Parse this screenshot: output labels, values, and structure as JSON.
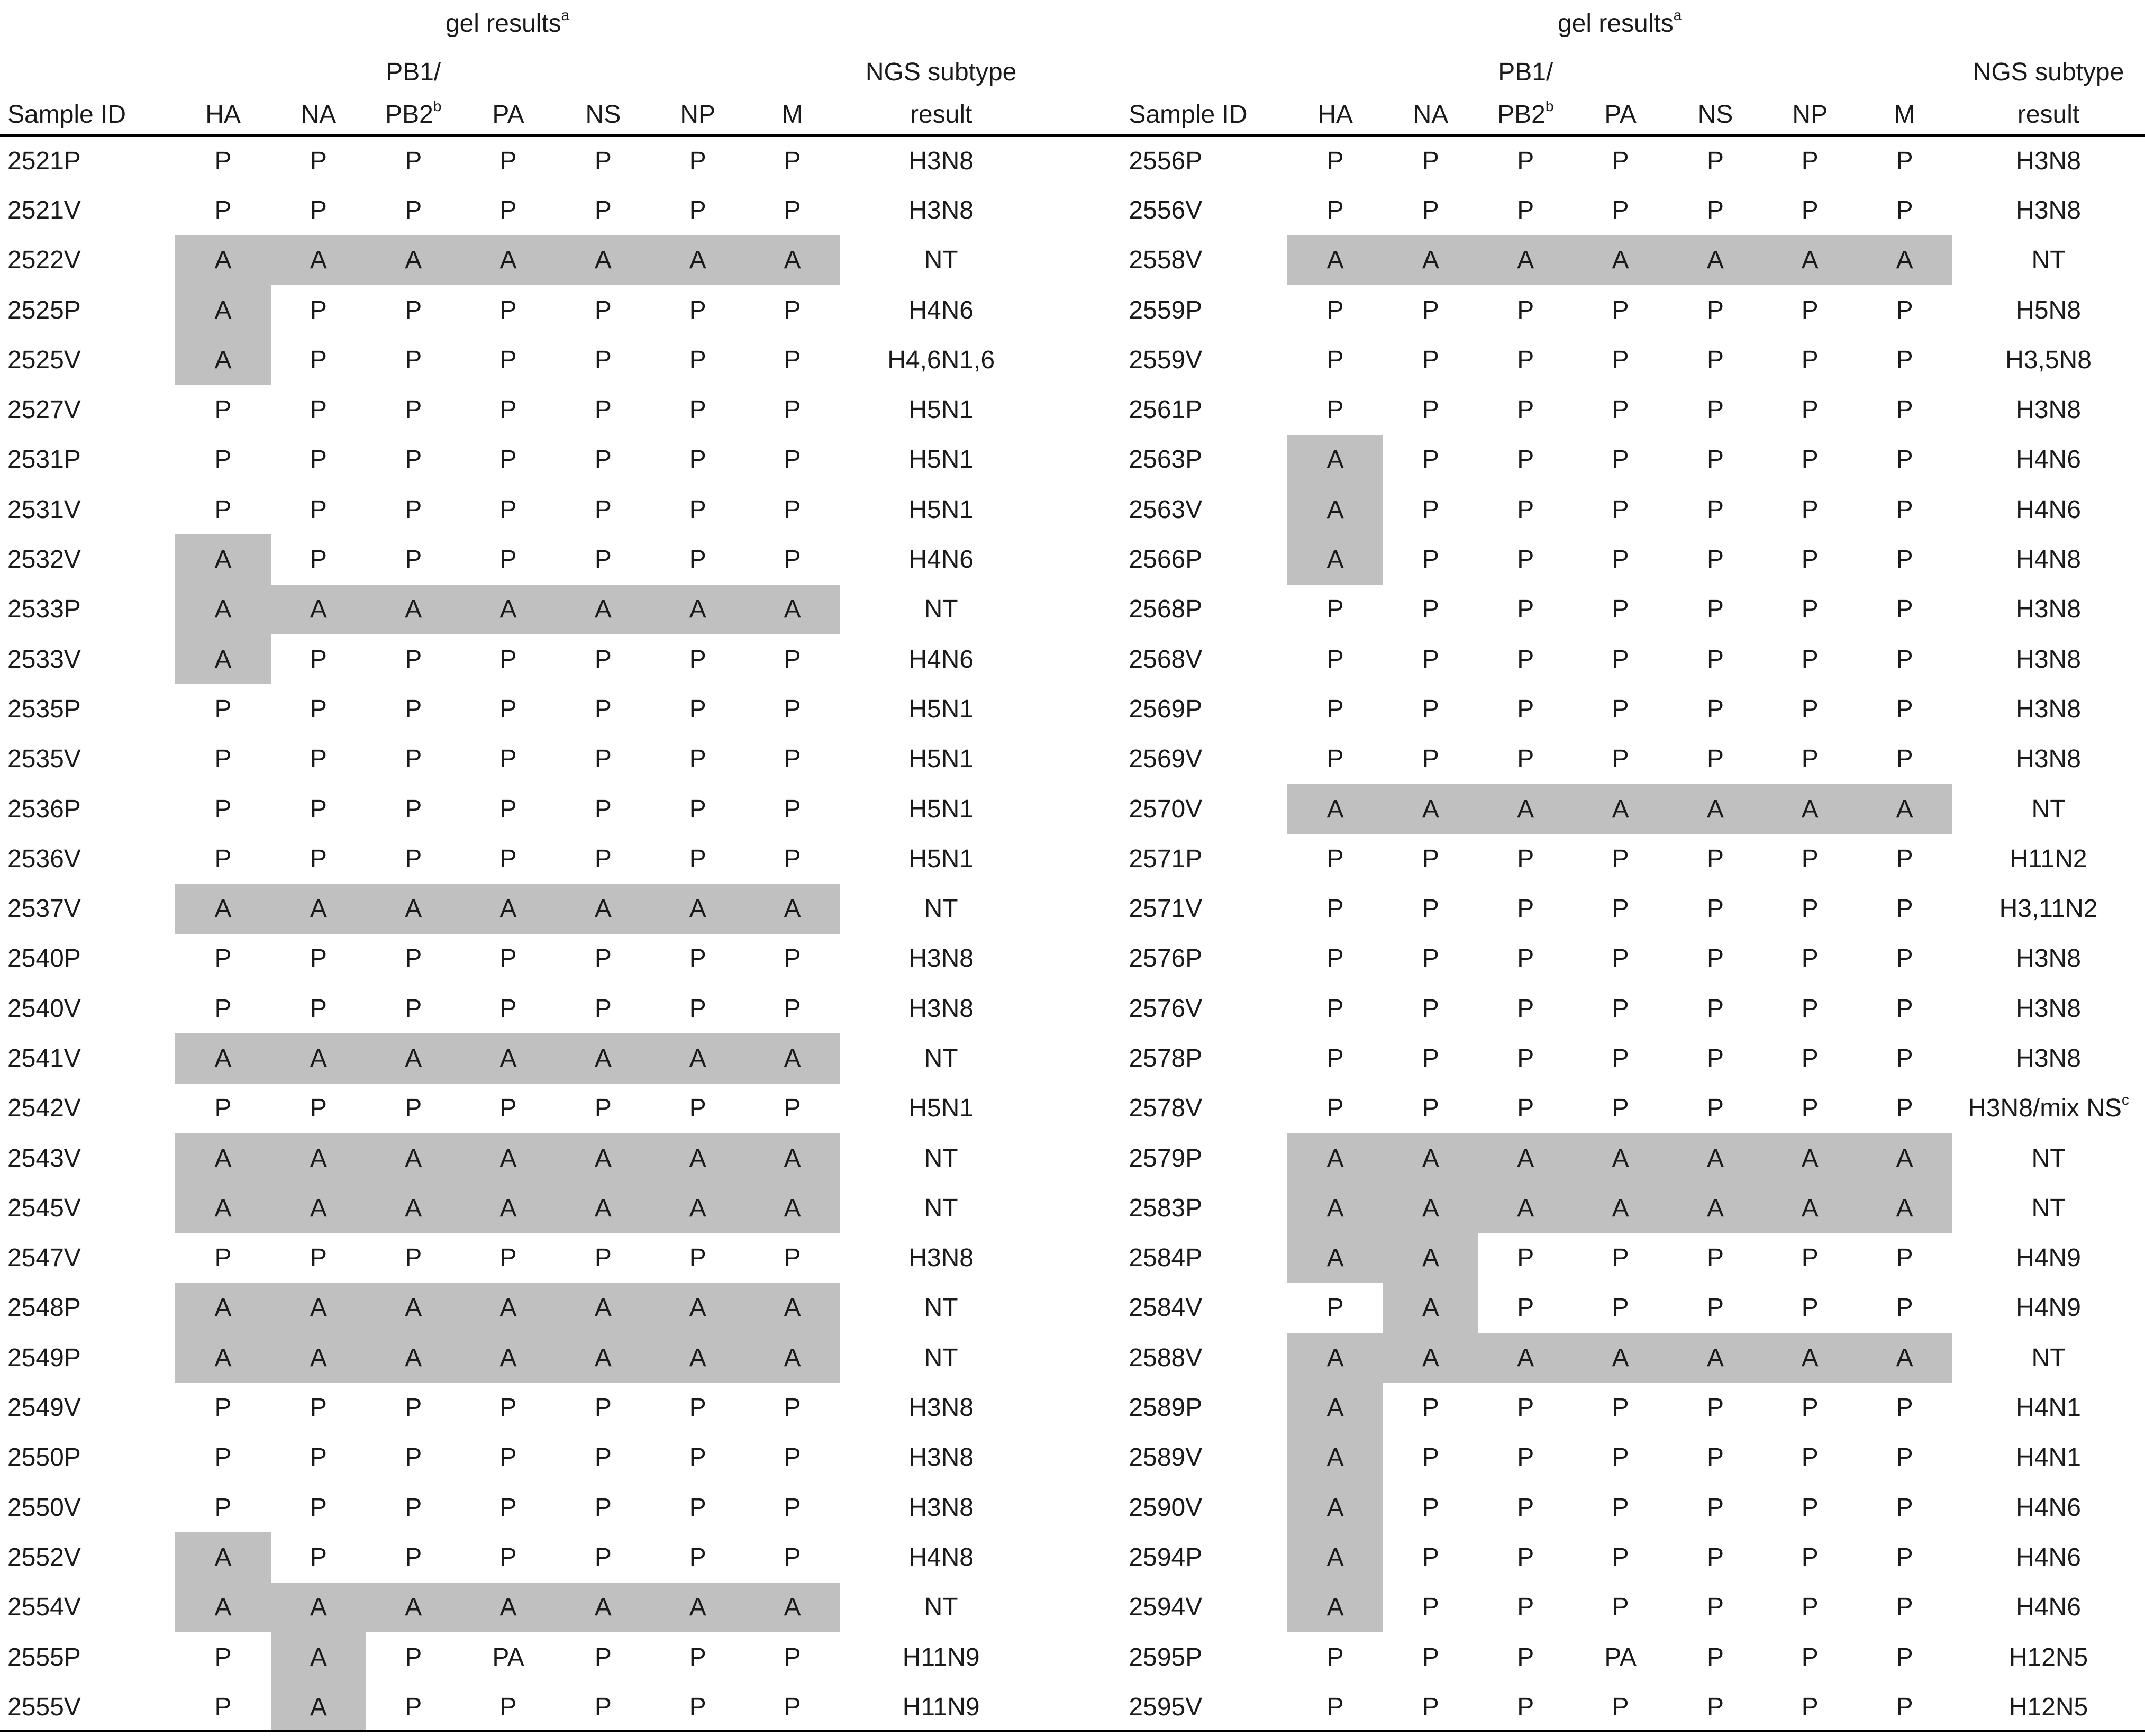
{
  "header": {
    "gel_results": "gel results",
    "gel_results_sup": "a",
    "sample_id": "Sample ID",
    "pb_top": "PB1/",
    "pb_bottom": "PB2",
    "pb_sup": "b",
    "ngs_line1": "NGS subtype",
    "ngs_line2": "result",
    "genes": [
      "HA",
      "NA",
      "PA",
      "NS",
      "NP",
      "M"
    ]
  },
  "left": [
    {
      "id": "2521P",
      "gel": [
        "P",
        "P",
        "P",
        "P",
        "P",
        "P",
        "P"
      ],
      "ngs": "H3N8"
    },
    {
      "id": "2521V",
      "gel": [
        "P",
        "P",
        "P",
        "P",
        "P",
        "P",
        "P"
      ],
      "ngs": "H3N8"
    },
    {
      "id": "2522V",
      "gel": [
        "A",
        "A",
        "A",
        "A",
        "A",
        "A",
        "A"
      ],
      "ngs": "NT"
    },
    {
      "id": "2525P",
      "gel": [
        "A",
        "P",
        "P",
        "P",
        "P",
        "P",
        "P"
      ],
      "ngs": "H4N6"
    },
    {
      "id": "2525V",
      "gel": [
        "A",
        "P",
        "P",
        "P",
        "P",
        "P",
        "P"
      ],
      "ngs": "H4,6N1,6"
    },
    {
      "id": "2527V",
      "gel": [
        "P",
        "P",
        "P",
        "P",
        "P",
        "P",
        "P"
      ],
      "ngs": "H5N1"
    },
    {
      "id": "2531P",
      "gel": [
        "P",
        "P",
        "P",
        "P",
        "P",
        "P",
        "P"
      ],
      "ngs": "H5N1"
    },
    {
      "id": "2531V",
      "gel": [
        "P",
        "P",
        "P",
        "P",
        "P",
        "P",
        "P"
      ],
      "ngs": "H5N1"
    },
    {
      "id": "2532V",
      "gel": [
        "A",
        "P",
        "P",
        "P",
        "P",
        "P",
        "P"
      ],
      "ngs": "H4N6"
    },
    {
      "id": "2533P",
      "gel": [
        "A",
        "A",
        "A",
        "A",
        "A",
        "A",
        "A"
      ],
      "ngs": "NT"
    },
    {
      "id": "2533V",
      "gel": [
        "A",
        "P",
        "P",
        "P",
        "P",
        "P",
        "P"
      ],
      "ngs": "H4N6"
    },
    {
      "id": "2535P",
      "gel": [
        "P",
        "P",
        "P",
        "P",
        "P",
        "P",
        "P"
      ],
      "ngs": "H5N1"
    },
    {
      "id": "2535V",
      "gel": [
        "P",
        "P",
        "P",
        "P",
        "P",
        "P",
        "P"
      ],
      "ngs": "H5N1"
    },
    {
      "id": "2536P",
      "gel": [
        "P",
        "P",
        "P",
        "P",
        "P",
        "P",
        "P"
      ],
      "ngs": "H5N1"
    },
    {
      "id": "2536V",
      "gel": [
        "P",
        "P",
        "P",
        "P",
        "P",
        "P",
        "P"
      ],
      "ngs": "H5N1"
    },
    {
      "id": "2537V",
      "gel": [
        "A",
        "A",
        "A",
        "A",
        "A",
        "A",
        "A"
      ],
      "ngs": "NT"
    },
    {
      "id": "2540P",
      "gel": [
        "P",
        "P",
        "P",
        "P",
        "P",
        "P",
        "P"
      ],
      "ngs": "H3N8"
    },
    {
      "id": "2540V",
      "gel": [
        "P",
        "P",
        "P",
        "P",
        "P",
        "P",
        "P"
      ],
      "ngs": "H3N8"
    },
    {
      "id": "2541V",
      "gel": [
        "A",
        "A",
        "A",
        "A",
        "A",
        "A",
        "A"
      ],
      "ngs": "NT"
    },
    {
      "id": "2542V",
      "gel": [
        "P",
        "P",
        "P",
        "P",
        "P",
        "P",
        "P"
      ],
      "ngs": "H5N1"
    },
    {
      "id": "2543V",
      "gel": [
        "A",
        "A",
        "A",
        "A",
        "A",
        "A",
        "A"
      ],
      "ngs": "NT"
    },
    {
      "id": "2545V",
      "gel": [
        "A",
        "A",
        "A",
        "A",
        "A",
        "A",
        "A"
      ],
      "ngs": "NT"
    },
    {
      "id": "2547V",
      "gel": [
        "P",
        "P",
        "P",
        "P",
        "P",
        "P",
        "P"
      ],
      "ngs": "H3N8"
    },
    {
      "id": "2548P",
      "gel": [
        "A",
        "A",
        "A",
        "A",
        "A",
        "A",
        "A"
      ],
      "ngs": "NT"
    },
    {
      "id": "2549P",
      "gel": [
        "A",
        "A",
        "A",
        "A",
        "A",
        "A",
        "A"
      ],
      "ngs": "NT"
    },
    {
      "id": "2549V",
      "gel": [
        "P",
        "P",
        "P",
        "P",
        "P",
        "P",
        "P"
      ],
      "ngs": "H3N8"
    },
    {
      "id": "2550P",
      "gel": [
        "P",
        "P",
        "P",
        "P",
        "P",
        "P",
        "P"
      ],
      "ngs": "H3N8"
    },
    {
      "id": "2550V",
      "gel": [
        "P",
        "P",
        "P",
        "P",
        "P",
        "P",
        "P"
      ],
      "ngs": "H3N8"
    },
    {
      "id": "2552V",
      "gel": [
        "A",
        "P",
        "P",
        "P",
        "P",
        "P",
        "P"
      ],
      "ngs": "H4N8"
    },
    {
      "id": "2554V",
      "gel": [
        "A",
        "A",
        "A",
        "A",
        "A",
        "A",
        "A"
      ],
      "ngs": "NT"
    },
    {
      "id": "2555P",
      "gel": [
        "P",
        "A",
        "P",
        "PA",
        "P",
        "P",
        "P"
      ],
      "ngs": "H11N9"
    },
    {
      "id": "2555V",
      "gel": [
        "P",
        "A",
        "P",
        "P",
        "P",
        "P",
        "P"
      ],
      "ngs": "H11N9"
    }
  ],
  "right": [
    {
      "id": "2556P",
      "gel": [
        "P",
        "P",
        "P",
        "P",
        "P",
        "P",
        "P"
      ],
      "ngs": "H3N8"
    },
    {
      "id": "2556V",
      "gel": [
        "P",
        "P",
        "P",
        "P",
        "P",
        "P",
        "P"
      ],
      "ngs": "H3N8"
    },
    {
      "id": "2558V",
      "gel": [
        "A",
        "A",
        "A",
        "A",
        "A",
        "A",
        "A"
      ],
      "ngs": "NT"
    },
    {
      "id": "2559P",
      "gel": [
        "P",
        "P",
        "P",
        "P",
        "P",
        "P",
        "P"
      ],
      "ngs": "H5N8"
    },
    {
      "id": "2559V",
      "gel": [
        "P",
        "P",
        "P",
        "P",
        "P",
        "P",
        "P"
      ],
      "ngs": "H3,5N8"
    },
    {
      "id": "2561P",
      "gel": [
        "P",
        "P",
        "P",
        "P",
        "P",
        "P",
        "P"
      ],
      "ngs": "H3N8"
    },
    {
      "id": "2563P",
      "gel": [
        "A",
        "P",
        "P",
        "P",
        "P",
        "P",
        "P"
      ],
      "ngs": "H4N6"
    },
    {
      "id": "2563V",
      "gel": [
        "A",
        "P",
        "P",
        "P",
        "P",
        "P",
        "P"
      ],
      "ngs": "H4N6"
    },
    {
      "id": "2566P",
      "gel": [
        "A",
        "P",
        "P",
        "P",
        "P",
        "P",
        "P"
      ],
      "ngs": "H4N8"
    },
    {
      "id": "2568P",
      "gel": [
        "P",
        "P",
        "P",
        "P",
        "P",
        "P",
        "P"
      ],
      "ngs": "H3N8"
    },
    {
      "id": "2568V",
      "gel": [
        "P",
        "P",
        "P",
        "P",
        "P",
        "P",
        "P"
      ],
      "ngs": "H3N8"
    },
    {
      "id": "2569P",
      "gel": [
        "P",
        "P",
        "P",
        "P",
        "P",
        "P",
        "P"
      ],
      "ngs": "H3N8"
    },
    {
      "id": "2569V",
      "gel": [
        "P",
        "P",
        "P",
        "P",
        "P",
        "P",
        "P"
      ],
      "ngs": "H3N8"
    },
    {
      "id": "2570V",
      "gel": [
        "A",
        "A",
        "A",
        "A",
        "A",
        "A",
        "A"
      ],
      "ngs": "NT"
    },
    {
      "id": "2571P",
      "gel": [
        "P",
        "P",
        "P",
        "P",
        "P",
        "P",
        "P"
      ],
      "ngs": "H11N2"
    },
    {
      "id": "2571V",
      "gel": [
        "P",
        "P",
        "P",
        "P",
        "P",
        "P",
        "P"
      ],
      "ngs": "H3,11N2"
    },
    {
      "id": "2576P",
      "gel": [
        "P",
        "P",
        "P",
        "P",
        "P",
        "P",
        "P"
      ],
      "ngs": "H3N8"
    },
    {
      "id": "2576V",
      "gel": [
        "P",
        "P",
        "P",
        "P",
        "P",
        "P",
        "P"
      ],
      "ngs": "H3N8"
    },
    {
      "id": "2578P",
      "gel": [
        "P",
        "P",
        "P",
        "P",
        "P",
        "P",
        "P"
      ],
      "ngs": "H3N8"
    },
    {
      "id": "2578V",
      "gel": [
        "P",
        "P",
        "P",
        "P",
        "P",
        "P",
        "P"
      ],
      "ngs": "H3N8/mix NS",
      "ngs_sup": "c"
    },
    {
      "id": "2579P",
      "gel": [
        "A",
        "A",
        "A",
        "A",
        "A",
        "A",
        "A"
      ],
      "ngs": "NT"
    },
    {
      "id": "2583P",
      "gel": [
        "A",
        "A",
        "A",
        "A",
        "A",
        "A",
        "A"
      ],
      "ngs": "NT"
    },
    {
      "id": "2584P",
      "gel": [
        "A",
        "A",
        "P",
        "P",
        "P",
        "P",
        "P"
      ],
      "ngs": "H4N9"
    },
    {
      "id": "2584V",
      "gel": [
        "P",
        "A",
        "P",
        "P",
        "P",
        "P",
        "P"
      ],
      "ngs": "H4N9"
    },
    {
      "id": "2588V",
      "gel": [
        "A",
        "A",
        "A",
        "A",
        "A",
        "A",
        "A"
      ],
      "ngs": "NT"
    },
    {
      "id": "2589P",
      "gel": [
        "A",
        "P",
        "P",
        "P",
        "P",
        "P",
        "P"
      ],
      "ngs": "H4N1"
    },
    {
      "id": "2589V",
      "gel": [
        "A",
        "P",
        "P",
        "P",
        "P",
        "P",
        "P"
      ],
      "ngs": "H4N1"
    },
    {
      "id": "2590V",
      "gel": [
        "A",
        "P",
        "P",
        "P",
        "P",
        "P",
        "P"
      ],
      "ngs": "H4N6"
    },
    {
      "id": "2594P",
      "gel": [
        "A",
        "P",
        "P",
        "P",
        "P",
        "P",
        "P"
      ],
      "ngs": "H4N6"
    },
    {
      "id": "2594V",
      "gel": [
        "A",
        "P",
        "P",
        "P",
        "P",
        "P",
        "P"
      ],
      "ngs": "H4N6"
    },
    {
      "id": "2595P",
      "gel": [
        "P",
        "P",
        "P",
        "PA",
        "P",
        "P",
        "P"
      ],
      "ngs": "H12N5"
    },
    {
      "id": "2595V",
      "gel": [
        "P",
        "P",
        "P",
        "P",
        "P",
        "P",
        "P"
      ],
      "ngs": "H12N5"
    }
  ]
}
